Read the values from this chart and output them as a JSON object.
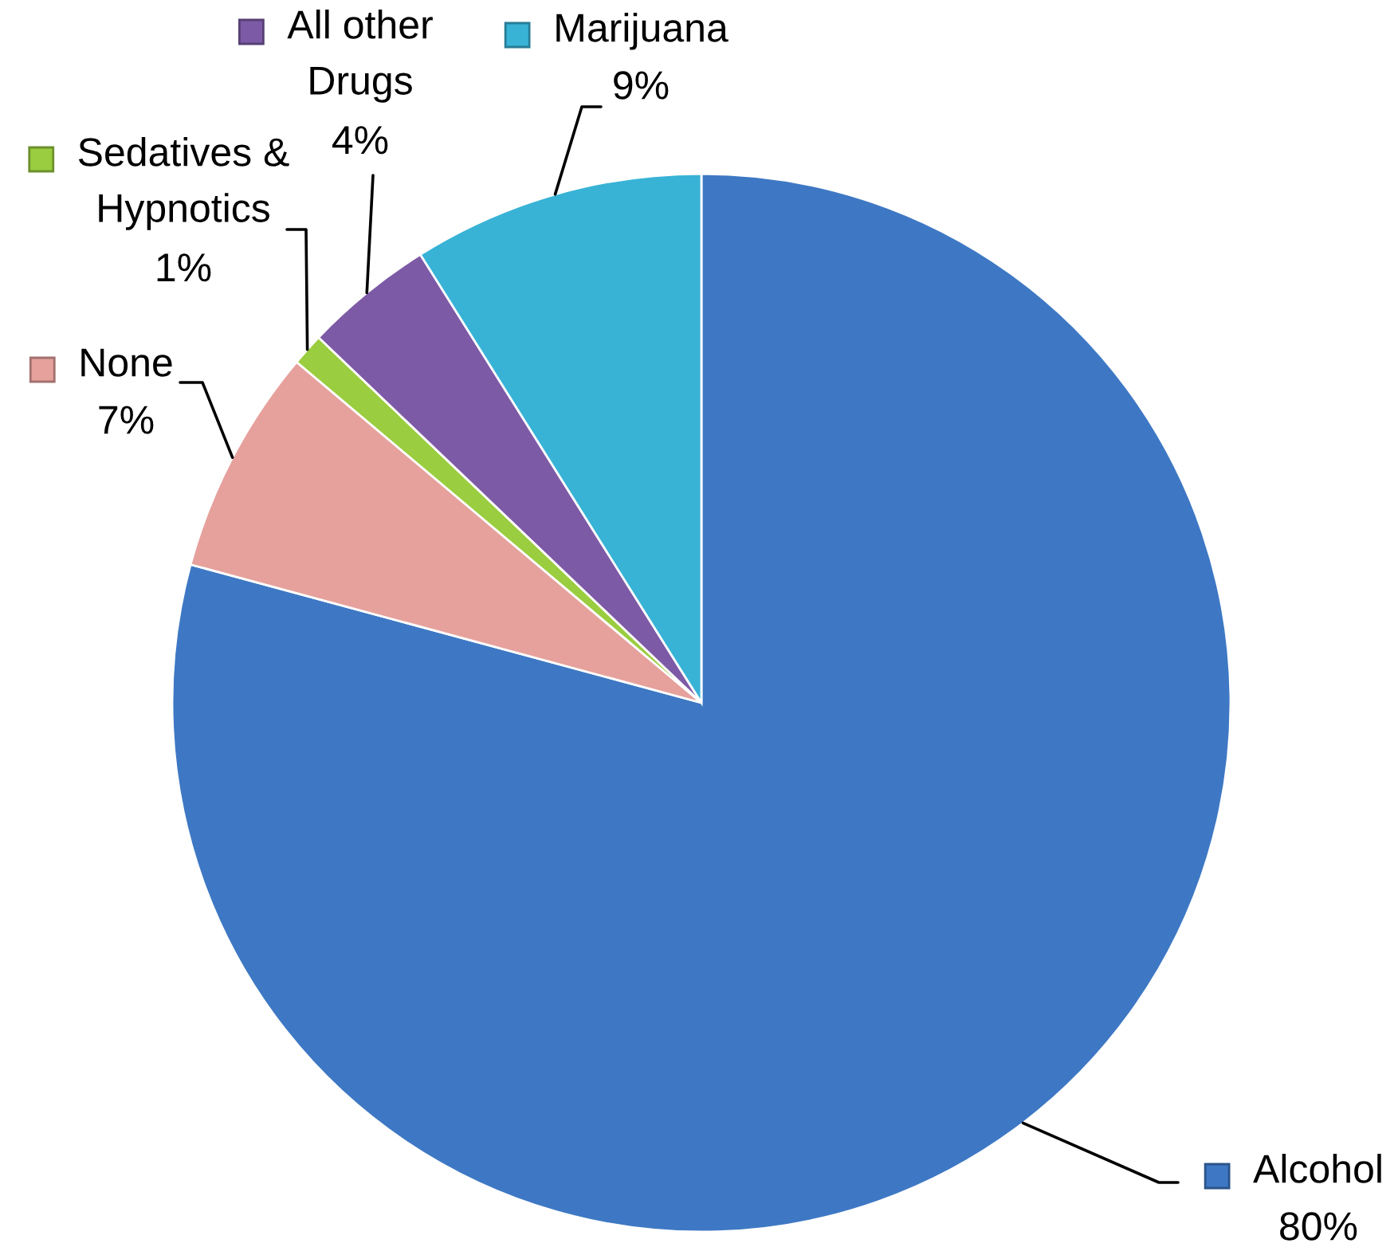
{
  "chart_data": {
    "type": "pie",
    "categories": [
      "Alcohol",
      "None",
      "Sedatives & Hypnotics",
      "All other Drugs",
      "Marijuana"
    ],
    "values": [
      80,
      7,
      1,
      4,
      9
    ],
    "colors": [
      "#3e78c4",
      "#e6a19d",
      "#9acd3f",
      "#7d5aa6",
      "#38b3d6"
    ],
    "value_labels": [
      "80%",
      "7%",
      "1%",
      "4%",
      "9%"
    ],
    "legend": true
  }
}
